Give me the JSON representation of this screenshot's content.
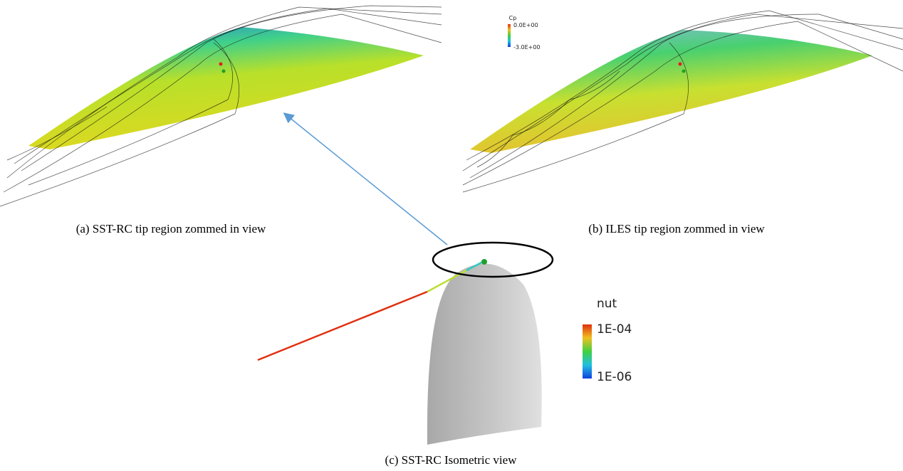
{
  "panels": [
    {
      "caption": "(a) SST-RC tip region zommed in view"
    },
    {
      "caption": "(b) ILES tip region zommed in view",
      "colorbar": {
        "title": "Cp",
        "max_label": "0.0E+00",
        "min_label": "-3.0E+00"
      }
    },
    {
      "caption": "(c) SST-RC Isometric view",
      "colorbar": {
        "title": "nut",
        "max_label": "1E-04",
        "min_label": "1E-06"
      }
    }
  ]
}
